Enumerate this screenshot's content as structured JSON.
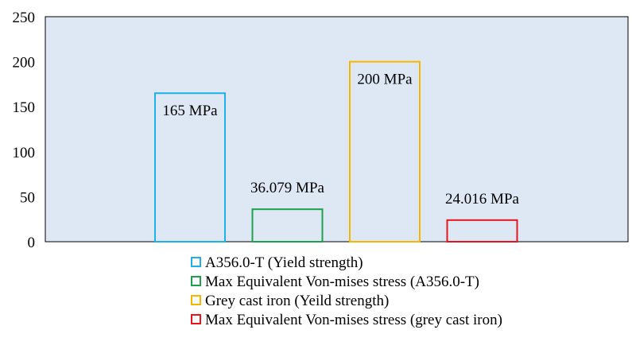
{
  "chart_data": {
    "type": "bar",
    "title": "",
    "xlabel": "",
    "ylabel": "",
    "ylim": [
      0,
      250
    ],
    "yticks": [
      0,
      50,
      100,
      150,
      200,
      250
    ],
    "grid": false,
    "plot_background": "#dde8f4",
    "legend_position": "bottom",
    "bar_style": "outline",
    "categories": [
      "A356.0-T (Yield strength)",
      "Max Equivalent Von-mises stress  (A356.0-T)",
      "Grey cast iron (Yeild strength)",
      "Max Equivalent Von-mises stress (grey cast iron)"
    ],
    "values": [
      165,
      36.079,
      200,
      24.016
    ],
    "data_labels": [
      "165 MPa",
      "36.079 MPa",
      "200 MPa",
      "24.016 MPa"
    ],
    "colors": [
      "#1fb0e8",
      "#1fa04a",
      "#f5b800",
      "#e8141b"
    ]
  }
}
